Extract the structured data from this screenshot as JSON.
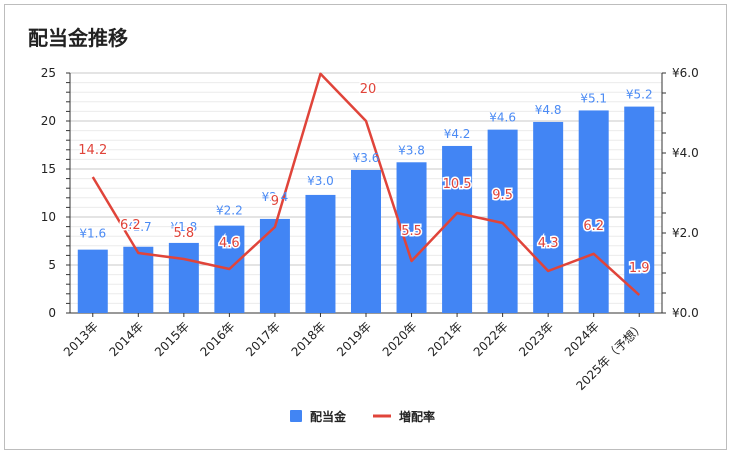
{
  "chart_data": {
    "type": "bar",
    "title": "配当金推移",
    "categories": [
      "2013年",
      "2014年",
      "2015年",
      "2016年",
      "2017年",
      "2018年",
      "2019年",
      "2020年",
      "2021年",
      "2022年",
      "2023年",
      "2024年",
      "2025年（予想）"
    ],
    "series": [
      {
        "name": "配当金",
        "type": "bar",
        "axis": "left",
        "values": [
          6.6,
          6.9,
          7.3,
          9.1,
          9.8,
          12.3,
          14.9,
          15.7,
          17.4,
          19.1,
          19.9,
          21.1,
          21.5
        ],
        "labels": [
          "¥1.6",
          "¥1.7",
          "¥1.8",
          "¥2.2",
          "¥2.4",
          "¥3.0",
          "¥3.6",
          "¥3.8",
          "¥4.2",
          "¥4.6",
          "¥4.8",
          "¥5.1",
          "¥5.2"
        ],
        "color": "#4285f4"
      },
      {
        "name": "増配率",
        "type": "line",
        "axis": "right",
        "values": [
          3.4,
          1.5,
          1.35,
          1.1,
          2.15,
          5.98,
          4.8,
          1.3,
          2.5,
          2.25,
          1.05,
          1.48,
          0.45
        ],
        "labels": [
          "14.2",
          "6.2",
          "5.8",
          "4.6",
          "9",
          "",
          "20",
          "5.5",
          "10.5",
          "9.5",
          "4.3",
          "6.2",
          "1.9"
        ],
        "color": "#e0443a"
      }
    ],
    "ylim_left": [
      0,
      25
    ],
    "yticks_left": [
      "0",
      "5",
      "10",
      "15",
      "20",
      "25"
    ],
    "ylim_right": [
      0,
      6
    ],
    "yticks_right": [
      "¥0.0",
      "¥2.0",
      "¥4.0",
      "¥6.0"
    ],
    "grid": true,
    "legend_position": "bottom"
  }
}
